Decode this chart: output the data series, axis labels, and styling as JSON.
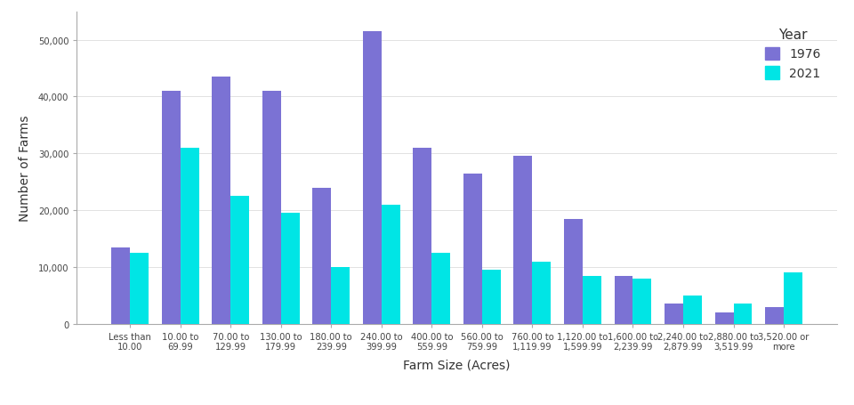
{
  "categories": [
    "Less than\n10.00",
    "10.00 to\n69.99",
    "70.00 to\n129.99",
    "130.00 to\n179.99",
    "180.00 to\n239.99",
    "240.00 to\n399.99",
    "400.00 to\n559.99",
    "560.00 to\n759.99",
    "760.00 to\n1,119.99",
    "1,120.00 to\n1,599.99",
    "1,600.00 to\n2,239.99",
    "2,240.00 to\n2,879.99",
    "2,880.00 to\n3,519.99",
    "3,520.00 or\nmore"
  ],
  "values_1976": [
    13500,
    41000,
    43500,
    41000,
    24000,
    51500,
    31000,
    26500,
    29500,
    18500,
    8500,
    3500,
    2000,
    3000
  ],
  "values_2021": [
    12500,
    31000,
    22500,
    19500,
    10000,
    21000,
    12500,
    9500,
    11000,
    8500,
    8000,
    5000,
    3500,
    9000
  ],
  "color_1976": "#7B72D4",
  "color_2021": "#00E5E5",
  "xlabel": "Farm Size (Acres)",
  "ylabel": "Number of Farms",
  "ylim": [
    0,
    55000
  ],
  "yticks": [
    0,
    10000,
    20000,
    30000,
    40000,
    50000
  ],
  "ytick_labels": [
    "0",
    "10,000",
    "20,000",
    "30,000",
    "40,000",
    "50,000"
  ],
  "legend_title": "Year",
  "legend_labels": [
    "1976",
    "2021"
  ],
  "background_color": "#ffffff",
  "bar_width": 0.37,
  "axis_fontsize": 9,
  "tick_fontsize": 7.2
}
